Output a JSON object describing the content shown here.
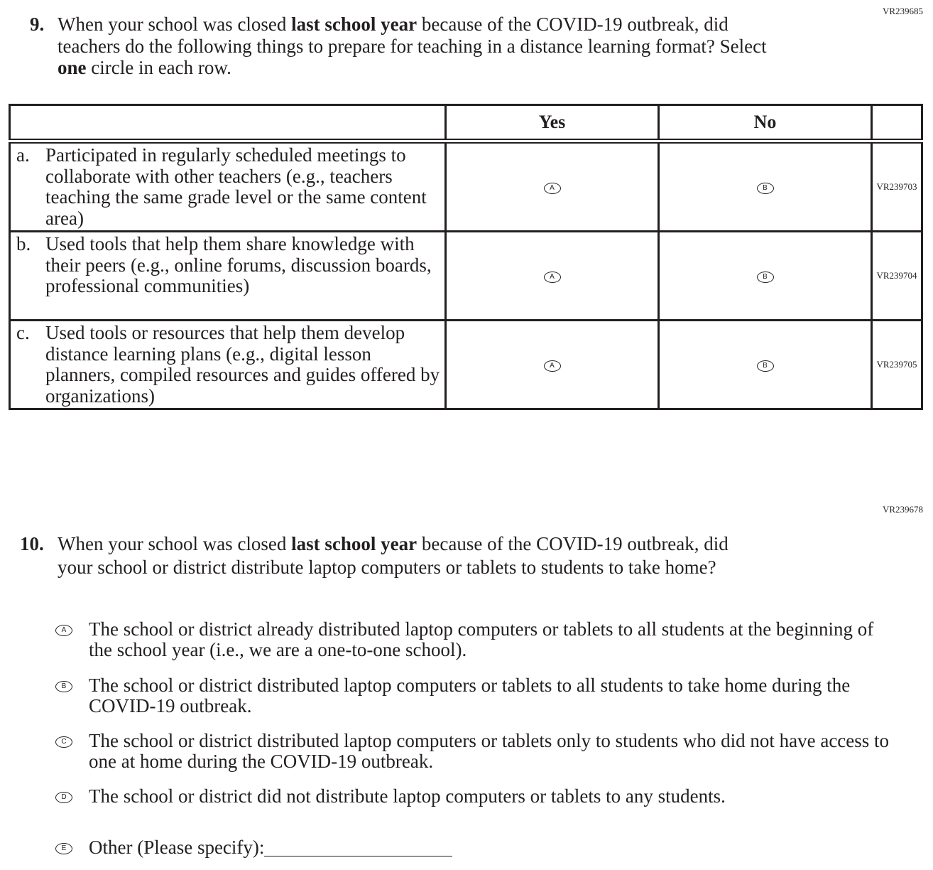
{
  "q9": {
    "code": "VR239685",
    "number": "9.",
    "text_parts": [
      "When your school was closed ",
      "last school year",
      " because of the COVID-19 outbreak, did teachers do the following things to prepare for teaching in a distance learning format? Select ",
      "one",
      " circle in each row."
    ],
    "columns": [
      "",
      "Yes",
      "No",
      ""
    ],
    "rows": [
      {
        "letter": "a.",
        "text": "Participated in regularly scheduled meetings to collaborate with other teachers (e.g., teachers teaching the same grade level or the same content area)",
        "yes": "A",
        "no": "B",
        "code": "VR239703"
      },
      {
        "letter": "b.",
        "text": "Used tools that help them share knowledge with their peers (e.g., online forums, discussion boards, professional communities)",
        "yes": "A",
        "no": "B",
        "code": "VR239704"
      },
      {
        "letter": "c.",
        "text": "Used tools or resources that help them develop distance learning plans (e.g., digital lesson planners, compiled resources and guides offered by organizations)",
        "yes": "A",
        "no": "B",
        "code": "VR239705"
      }
    ]
  },
  "q10": {
    "code": "VR239678",
    "number": "10.",
    "text_parts": [
      "When your school was closed ",
      "last school year",
      " because of the COVID-19 outbreak, did your school or district distribute laptop computers or tablets to students to take home?"
    ],
    "options": [
      {
        "letter": "A",
        "text": "The school or district already distributed laptop computers or tablets to all students at the beginning of the school year (i.e., we are a one-to-one school)."
      },
      {
        "letter": "B",
        "text": "The school or district distributed laptop computers or tablets to all students to take home during the COVID-19 outbreak."
      },
      {
        "letter": "C",
        "text": "The school or district distributed laptop computers or tablets only to students who did not have access to one at home during the COVID-19 outbreak."
      },
      {
        "letter": "D",
        "text": "The school or district did not distribute laptop computers or tablets to any students."
      },
      {
        "letter": "E",
        "text": "Other (Please specify):"
      }
    ]
  }
}
